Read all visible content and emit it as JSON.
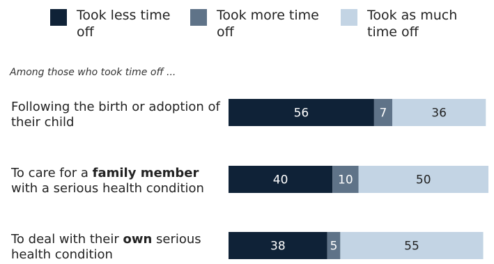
{
  "chart_data": {
    "type": "bar",
    "orientation": "horizontal",
    "stacked": true,
    "title": "",
    "subtitle": "Among those who took time off ...",
    "legend": {
      "placement": "top",
      "entries": [
        "Took less time off",
        "Took more time off",
        "Took as much time off"
      ]
    },
    "categories": [
      {
        "pre": "Following the birth or adoption of their child",
        "bold": "",
        "post": ""
      },
      {
        "pre": "To care for a ",
        "bold": "family member",
        "post": " with a serious health condition"
      },
      {
        "pre": "To deal with their ",
        "bold": "own",
        "post": " serious health condition"
      }
    ],
    "series": [
      {
        "name": "Took less time off",
        "color": "#0f2237",
        "values": [
          56,
          40,
          38
        ]
      },
      {
        "name": "Took more time off",
        "color": "#5f7388",
        "values": [
          7,
          10,
          5
        ]
      },
      {
        "name": "Took as much time off",
        "color": "#c3d4e4",
        "values": [
          36,
          50,
          55
        ]
      }
    ],
    "label_colors": [
      "#ffffff",
      "#ffffff",
      "#222222"
    ],
    "xlim": [
      0,
      100
    ],
    "grid": false
  }
}
